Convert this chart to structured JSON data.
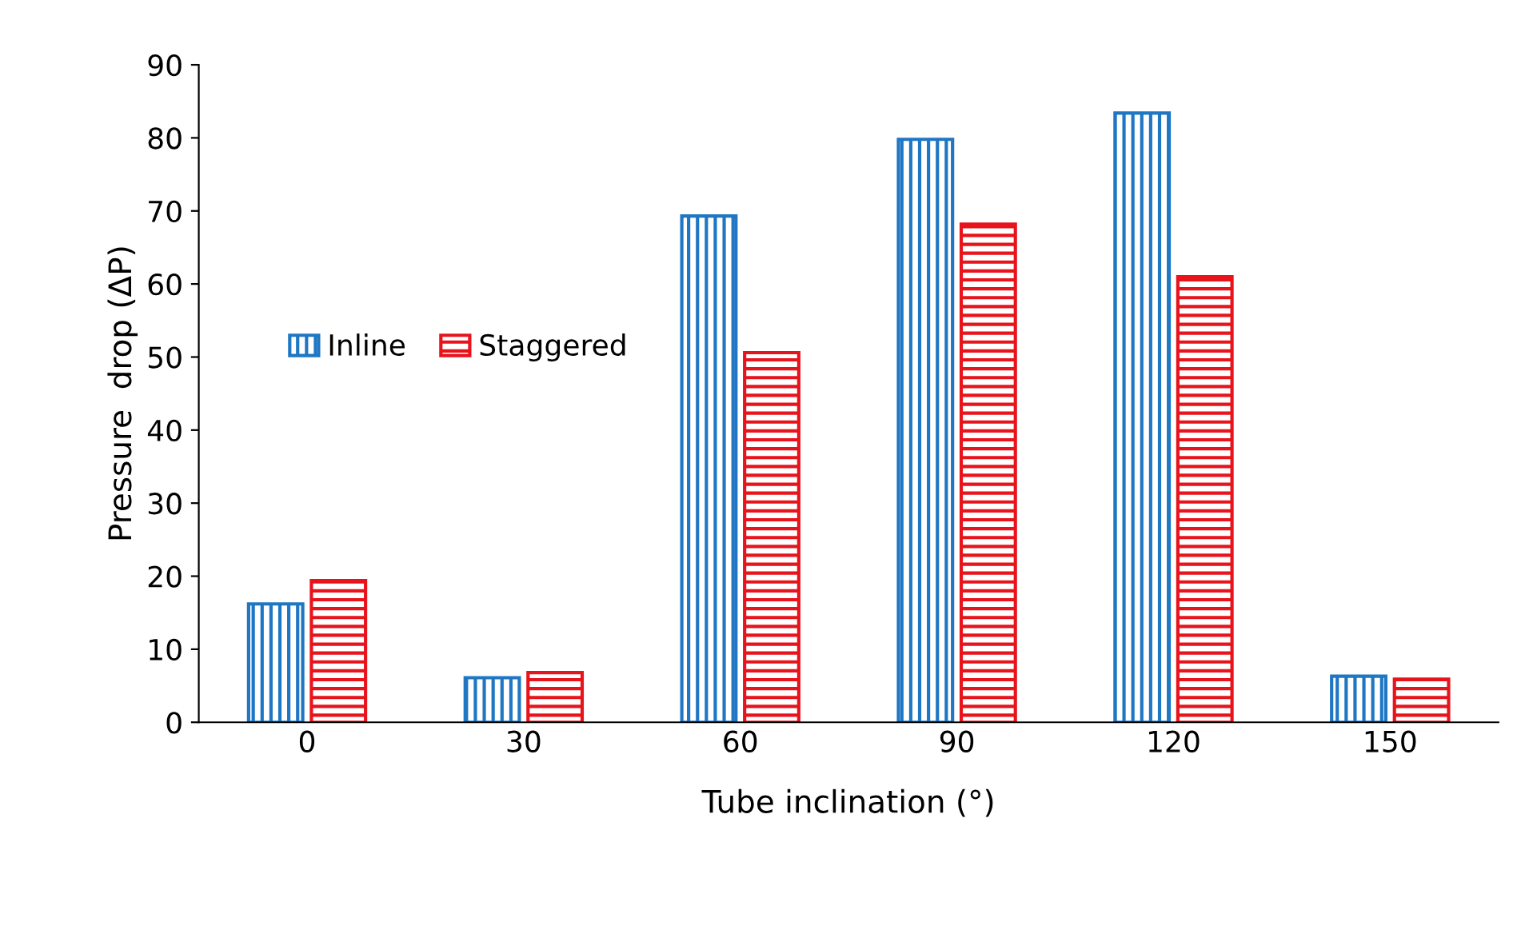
{
  "chart_data": {
    "type": "bar",
    "xlabel": "Tube inclination (°)",
    "ylabel": "Pressure  drop (ΔP)",
    "categories": [
      "0",
      "30",
      "60",
      "90",
      "120",
      "150"
    ],
    "series": [
      {
        "name": "Inline",
        "color": "#1f77c4",
        "values": [
          16.2,
          6.1,
          69.3,
          79.8,
          83.4,
          6.3
        ]
      },
      {
        "name": "Staggered",
        "color": "#e8141c",
        "values": [
          19.4,
          6.8,
          50.6,
          68.2,
          61.0,
          5.9
        ]
      }
    ],
    "ylim": [
      0,
      90
    ],
    "yticks": [
      0,
      10,
      20,
      30,
      40,
      50,
      60,
      70,
      80,
      90
    ],
    "grid": false,
    "legend": "left"
  }
}
